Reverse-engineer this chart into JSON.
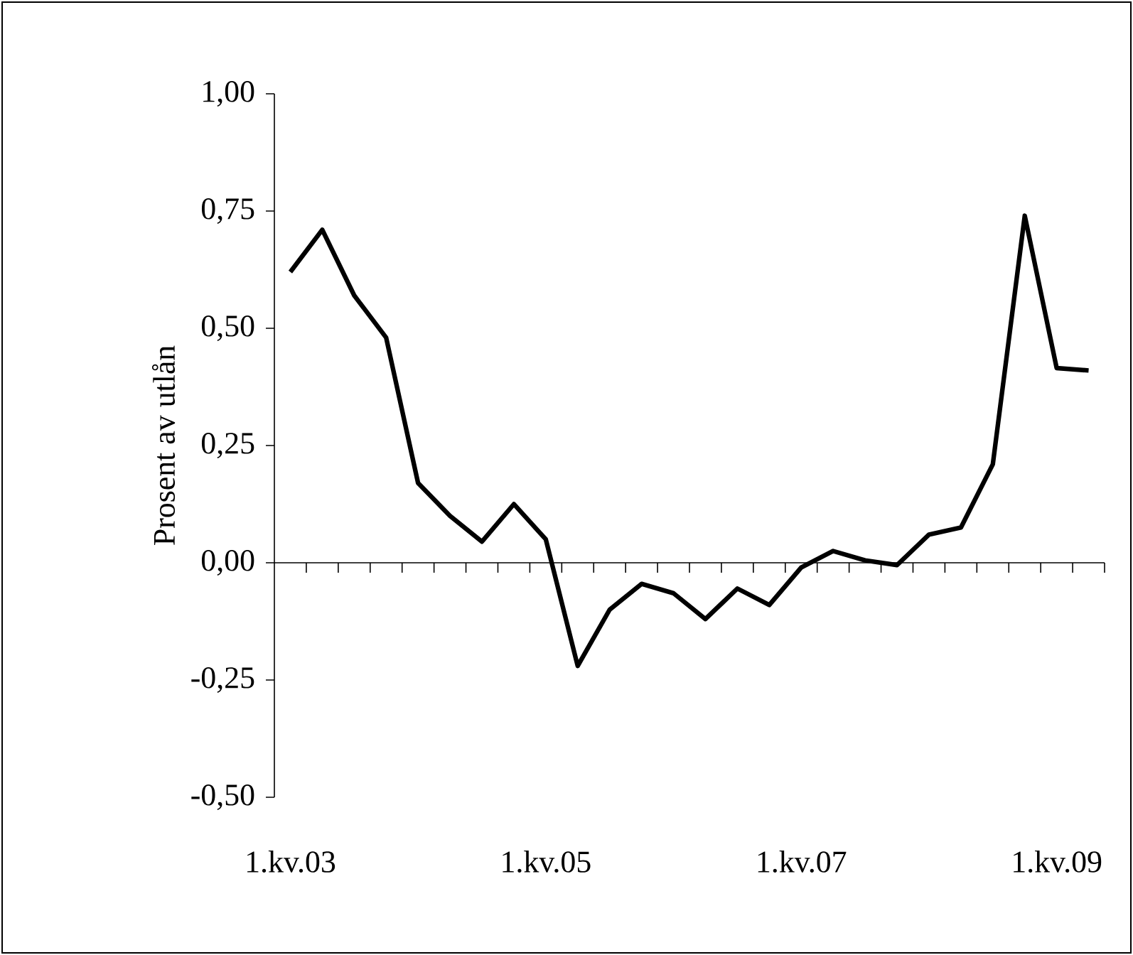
{
  "chart_data": {
    "type": "line",
    "ylabel": "Prosent av utlån",
    "categories": [
      "1.kv.03",
      null,
      null,
      null,
      null,
      null,
      null,
      null,
      "1.kv.05",
      null,
      null,
      null,
      null,
      null,
      null,
      null,
      "1.kv.07",
      null,
      null,
      null,
      null,
      null,
      null,
      null,
      "1.kv.09",
      null
    ],
    "series": [
      {
        "color": "#000000",
        "values": [
          0.62,
          0.71,
          0.57,
          0.48,
          0.17,
          0.1,
          0.045,
          0.125,
          0.05,
          -0.22,
          -0.1,
          -0.045,
          -0.065,
          -0.12,
          -0.055,
          -0.09,
          -0.01,
          0.025,
          0.005,
          -0.005,
          0.06,
          0.075,
          0.21,
          0.74,
          0.415,
          0.41
        ]
      }
    ],
    "ylim": [
      -0.5,
      1.0
    ],
    "yticks": [
      {
        "value": -0.5,
        "label": "-0,50"
      },
      {
        "value": -0.25,
        "label": "-0,25"
      },
      {
        "value": 0,
        "label": "0,00"
      },
      {
        "value": 0.25,
        "label": "0,25"
      },
      {
        "value": 0.5,
        "label": "0,50"
      },
      {
        "value": 0.75,
        "label": "0,75"
      },
      {
        "value": 1.0,
        "label": "1,00"
      }
    ],
    "marker": "none",
    "line_style": "solid"
  }
}
